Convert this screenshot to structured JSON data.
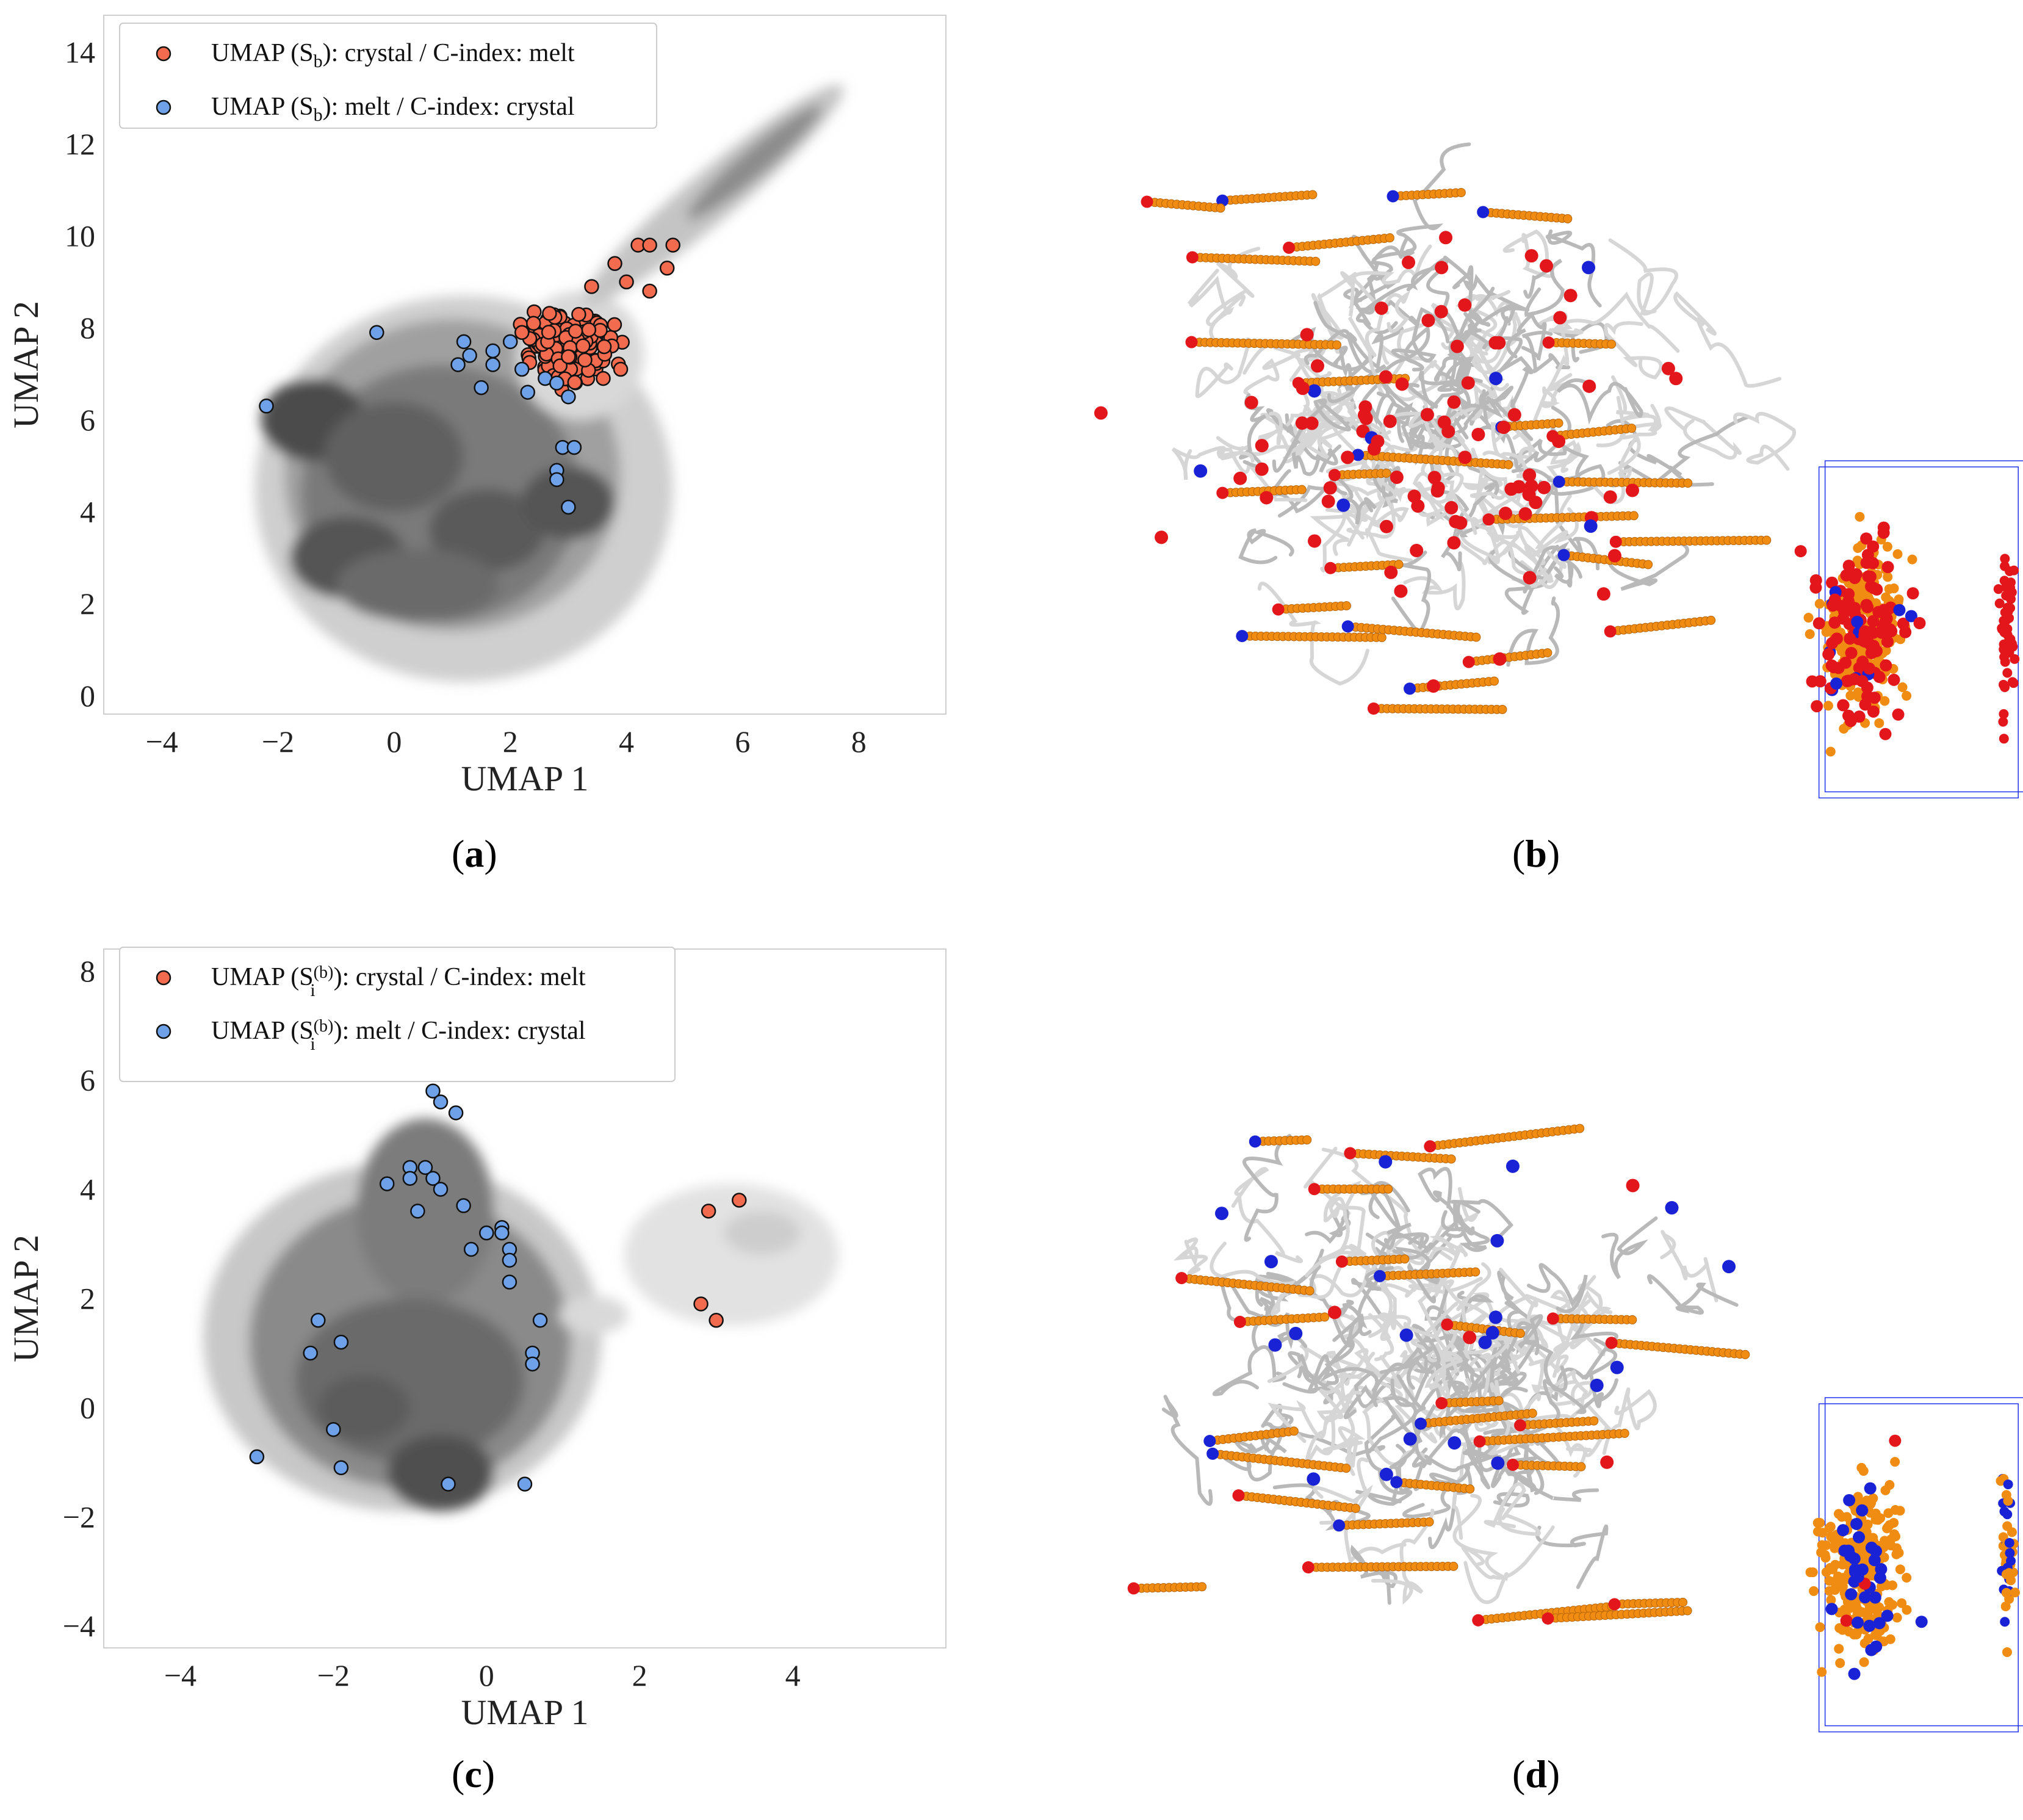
{
  "colors": {
    "melt_marker": "#F26B4F",
    "crystal_marker": "#6FA1E8",
    "marker_edge": "#111111",
    "frame": "#cfcfcf",
    "render_red": "#E3161B",
    "render_orange": "#F08C12",
    "render_blue": "#1A22D6"
  },
  "panels": {
    "a": {
      "caption_letter": "a"
    },
    "b": {
      "caption_letter": "b"
    },
    "c": {
      "caption_letter": "c"
    },
    "d": {
      "caption_letter": "d"
    }
  },
  "chart_data": [
    {
      "id": "a",
      "type": "scatter",
      "xlabel": "UMAP 1",
      "ylabel": "UMAP 2",
      "xlim": [
        -5,
        9.5
      ],
      "ylim": [
        -0.4,
        14.8
      ],
      "xticks": [
        -4,
        -2,
        0,
        2,
        4,
        6,
        8
      ],
      "yticks": [
        0,
        2,
        4,
        6,
        8,
        10,
        12,
        14
      ],
      "grid": false,
      "legend": {
        "position": "top-left",
        "entries": [
          {
            "prefix": "UMAP (S",
            "sub": "b",
            "suffix": "): crystal / C-index: melt",
            "color_key": "melt_marker"
          },
          {
            "prefix": "UMAP (S",
            "sub": "b",
            "suffix": "): melt / C-index: crystal",
            "color_key": "crystal_marker"
          }
        ]
      },
      "density_background": "grayscale KDE contours",
      "series": [
        {
          "name": "UMAP (Sb): crystal / C-index: melt",
          "color_key": "melt_marker",
          "cluster": {
            "center": [
              3.0,
              7.6
            ],
            "spread": [
              0.45,
              0.45
            ],
            "count": 150
          },
          "points": [
            [
              4.2,
              9.8
            ],
            [
              4.4,
              9.8
            ],
            [
              4.8,
              9.8
            ],
            [
              4.7,
              9.3
            ],
            [
              3.8,
              9.4
            ],
            [
              4.0,
              9.0
            ],
            [
              4.4,
              8.8
            ],
            [
              3.4,
              8.9
            ],
            [
              2.2,
              7.9
            ],
            [
              2.4,
              8.1
            ],
            [
              3.9,
              7.1
            ],
            [
              3.6,
              6.9
            ]
          ]
        },
        {
          "name": "UMAP (Sb): melt / C-index: crystal",
          "color_key": "crystal_marker",
          "points": [
            [
              -2.2,
              6.3
            ],
            [
              -0.3,
              7.9
            ],
            [
              1.2,
              7.7
            ],
            [
              1.3,
              7.4
            ],
            [
              1.1,
              7.2
            ],
            [
              1.7,
              7.5
            ],
            [
              1.7,
              7.2
            ],
            [
              1.5,
              6.7
            ],
            [
              2.0,
              7.7
            ],
            [
              2.2,
              7.1
            ],
            [
              2.3,
              6.6
            ],
            [
              2.6,
              6.9
            ],
            [
              2.8,
              6.8
            ],
            [
              2.9,
              5.4
            ],
            [
              3.1,
              5.4
            ],
            [
              2.8,
              4.9
            ],
            [
              2.8,
              4.7
            ],
            [
              3.0,
              4.1
            ],
            [
              3.0,
              6.5
            ]
          ]
        }
      ]
    },
    {
      "id": "c",
      "type": "scatter",
      "xlabel": "UMAP 1",
      "ylabel": "UMAP 2",
      "xlim": [
        -5,
        6
      ],
      "ylim": [
        -4.4,
        8.4
      ],
      "xticks": [
        -4,
        -2,
        0,
        2,
        4
      ],
      "yticks": [
        -4,
        -2,
        0,
        2,
        4,
        6,
        8
      ],
      "grid": false,
      "legend": {
        "position": "top-left",
        "entries": [
          {
            "prefix": "UMAP (S",
            "sub": "i",
            "sup": "(b)",
            "suffix": "): crystal / C-index: melt",
            "color_key": "melt_marker"
          },
          {
            "prefix": "UMAP (S",
            "sub": "i",
            "sup": "(b)",
            "suffix": "): melt / C-index: crystal",
            "color_key": "crystal_marker"
          }
        ]
      },
      "density_background": "grayscale KDE contours",
      "series": [
        {
          "name": "UMAP (Si(b)): crystal / C-index: melt",
          "color_key": "melt_marker",
          "points": [
            [
              3.3,
              3.8
            ],
            [
              2.9,
              3.6
            ],
            [
              2.8,
              1.9
            ],
            [
              3.0,
              1.6
            ]
          ]
        },
        {
          "name": "UMAP (Si(b)): melt / C-index: crystal",
          "color_key": "crystal_marker",
          "points": [
            [
              -0.7,
              5.8
            ],
            [
              -0.6,
              5.6
            ],
            [
              -0.4,
              5.4
            ],
            [
              -1.0,
              4.4
            ],
            [
              -0.8,
              4.4
            ],
            [
              -1.0,
              4.2
            ],
            [
              -0.7,
              4.2
            ],
            [
              -1.3,
              4.1
            ],
            [
              -0.6,
              4.0
            ],
            [
              -0.9,
              3.6
            ],
            [
              -0.3,
              3.7
            ],
            [
              0.0,
              3.2
            ],
            [
              0.2,
              3.3
            ],
            [
              0.2,
              3.2
            ],
            [
              -0.2,
              2.9
            ],
            [
              0.3,
              2.9
            ],
            [
              0.3,
              2.7
            ],
            [
              0.3,
              2.3
            ],
            [
              0.7,
              1.6
            ],
            [
              -2.2,
              1.6
            ],
            [
              -1.9,
              1.2
            ],
            [
              -2.3,
              1.0
            ],
            [
              0.6,
              1.0
            ],
            [
              0.6,
              0.8
            ],
            [
              -2.0,
              -0.4
            ],
            [
              -3.0,
              -0.9
            ],
            [
              -1.9,
              -1.1
            ],
            [
              -0.5,
              -1.4
            ],
            [
              0.5,
              -1.4
            ]
          ]
        }
      ]
    }
  ]
}
